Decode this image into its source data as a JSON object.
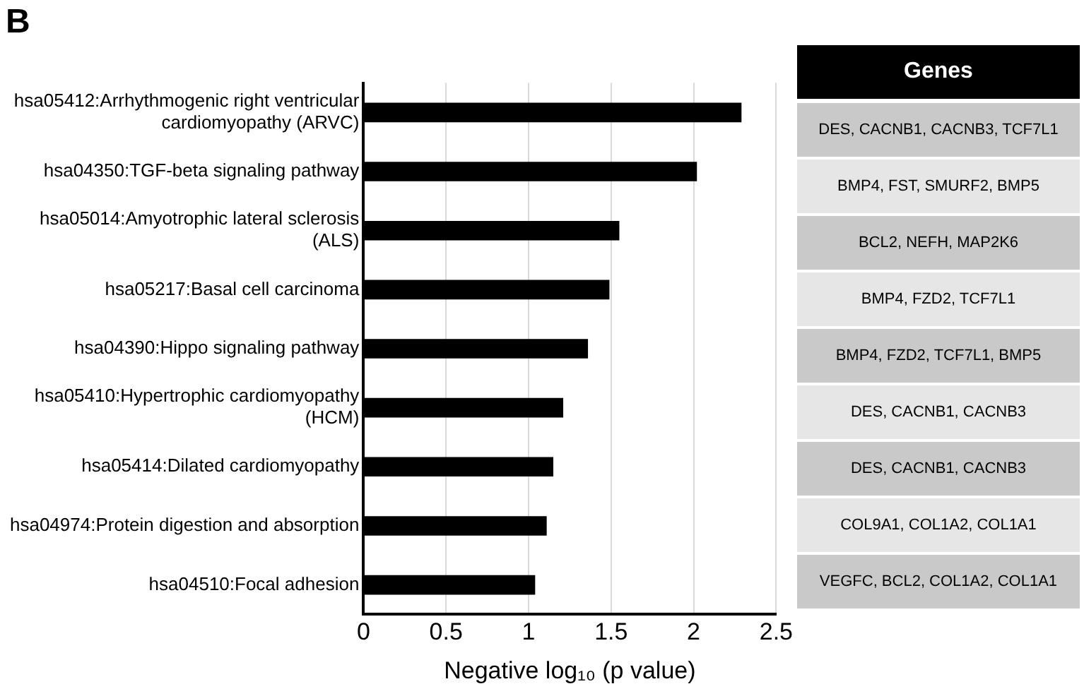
{
  "chart_data": [
    {
      "type": "bar",
      "title": "B",
      "orientation": "horizontal",
      "xlabel": "Negative log₁₀ (p value)",
      "categories": [
        "hsa05412:Arrhythmogenic right ventricular cardiomyopathy (ARVC)",
        "hsa04350:TGF-beta signaling pathway",
        "hsa05014:Amyotrophic lateral sclerosis (ALS)",
        "hsa05217:Basal cell carcinoma",
        "hsa04390:Hippo signaling pathway",
        "hsa05410:Hypertrophic cardiomyopathy (HCM)",
        "hsa05414:Dilated cardiomyopathy",
        "hsa04974:Protein digestion and absorption",
        "hsa04510:Focal adhesion"
      ],
      "values": [
        2.29,
        2.02,
        1.55,
        1.49,
        1.36,
        1.21,
        1.15,
        1.11,
        1.04
      ],
      "color": "#000000",
      "xlim": [
        0,
        2.5
      ],
      "xticks": [
        0,
        0.5,
        1,
        1.5,
        2,
        2.5
      ],
      "grid": "x"
    },
    {
      "type": "other",
      "title": "Genes",
      "annotations": [
        "DES, CACNB1, CACNB3, TCF7L1",
        "BMP4, FST, SMURF2, BMP5",
        "BCL2, NEFH, MAP2K6",
        "BMP4, FZD2, TCF7L1",
        "BMP4, FZD2, TCF7L1, BMP5",
        "DES, CACNB1, CACNB3",
        "DES, CACNB1, CACNB3",
        "COL9A1, COL1A2, COL1A1",
        "VEGFC, BCL2, COL1A2, COL1A1"
      ]
    }
  ]
}
